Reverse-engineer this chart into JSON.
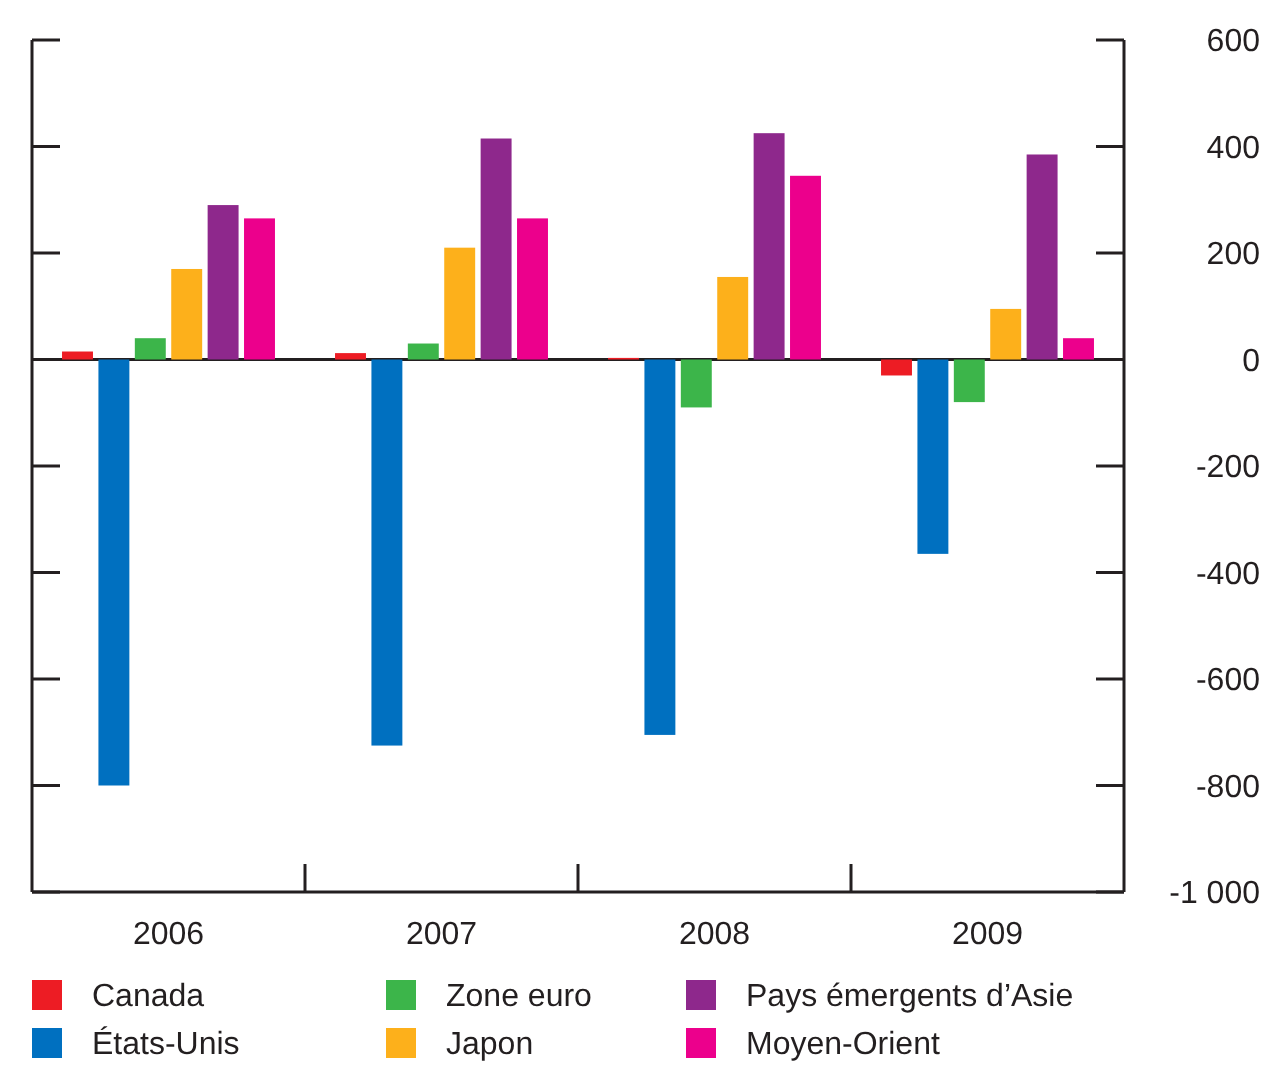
{
  "chart_data": {
    "type": "bar",
    "categories": [
      "2006",
      "2007",
      "2008",
      "2009"
    ],
    "series": [
      {
        "name": "Canada",
        "color": "#ed1c24",
        "values": [
          15,
          12,
          3,
          -30
        ]
      },
      {
        "name": "États-Unis",
        "color": "#0070c0",
        "values": [
          -800,
          -725,
          -705,
          -365
        ]
      },
      {
        "name": "Zone euro",
        "color": "#3cb54a",
        "values": [
          40,
          30,
          -90,
          -80
        ]
      },
      {
        "name": "Japon",
        "color": "#fdb01b",
        "values": [
          170,
          210,
          155,
          95
        ]
      },
      {
        "name": "Pays émergents d’Asie",
        "color": "#8e288c",
        "values": [
          290,
          415,
          425,
          385
        ]
      },
      {
        "name": "Moyen-Orient",
        "color": "#ec008c",
        "values": [
          265,
          265,
          345,
          40
        ]
      }
    ],
    "ylim": [
      -1000,
      600
    ],
    "yticks": [
      600,
      400,
      200,
      0,
      -200,
      -400,
      -600,
      -800,
      {
        "value": -1000,
        "label": "-1 000"
      }
    ],
    "legend": "bottom"
  }
}
